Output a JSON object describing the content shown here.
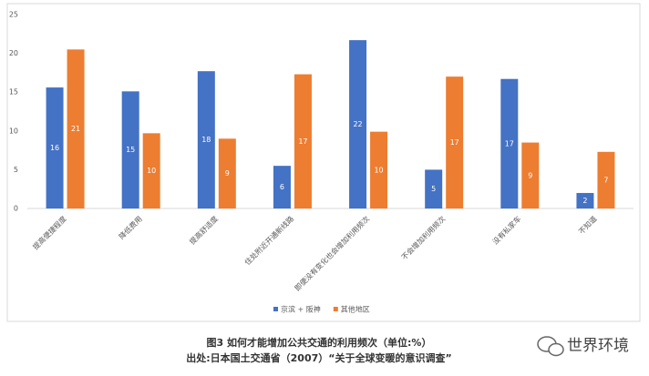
{
  "chart_data": {
    "type": "bar",
    "categories": [
      "提高便捷程度",
      "降低费用",
      "提高舒适度",
      "住处附近开通新线路",
      "即便没有变化也会增加利用频次",
      "不会增加利用频次",
      "没有私家车",
      "不知道"
    ],
    "series": [
      {
        "name": "京滨 + 阪神",
        "color": "#4472c4",
        "values": [
          15.6,
          15.1,
          17.7,
          5.5,
          21.7,
          5.0,
          16.7,
          2.0
        ],
        "value_labels": [
          "16",
          "15",
          "18",
          "6",
          "22",
          "5",
          "17",
          "2"
        ]
      },
      {
        "name": "其他地区",
        "color": "#ed7d31",
        "values": [
          20.5,
          9.7,
          9.0,
          17.3,
          9.9,
          17.0,
          8.5,
          7.3
        ],
        "value_labels": [
          "21",
          "10",
          "9",
          "17",
          "10",
          "17",
          "9",
          "7"
        ]
      }
    ],
    "ylim": [
      0,
      25
    ],
    "yticks": [
      0,
      5,
      10,
      15,
      20,
      25
    ],
    "grid": false,
    "legend": "bottom",
    "caption": [
      "图3  如何才能增加公共交通的利用频次（单位:%）",
      "出处:日本国土交通省（2007）“关于全球变暖的意识调查”"
    ]
  },
  "watermark": "世界环境"
}
